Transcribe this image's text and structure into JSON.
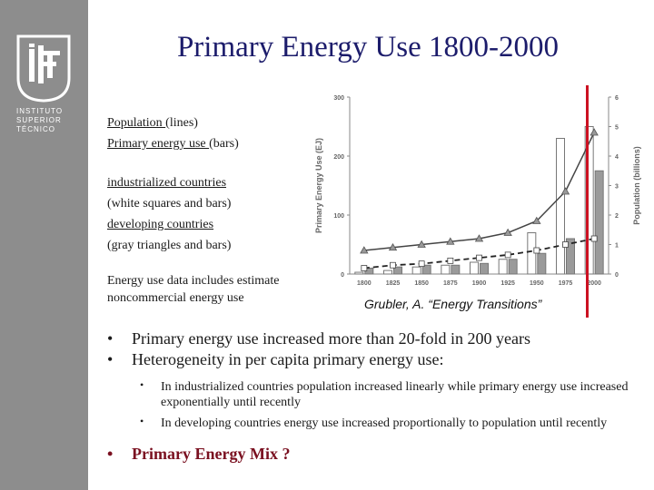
{
  "title": "Primary Energy Use 1800-2000",
  "logo": {
    "lines": [
      "INSTITUTO",
      "SUPERIOR",
      "TÉCNICO"
    ]
  },
  "legend": {
    "population_label": "Population ",
    "population_hint": "(lines)",
    "energy_label": "Primary energy use ",
    "energy_hint": "(bars)",
    "industrialized_label": "industrialized countries",
    "industrialized_hint": "(white squares and bars)",
    "developing_label": "developing  countries",
    "developing_hint": "(gray triangles and bars)",
    "note_line1": "Energy use data includes estimate",
    "note_line2": "noncommercial energy use"
  },
  "caption": "Grubler, A. “Energy Transitions”",
  "bullets": [
    {
      "text": "Primary energy use increased more than 20-fold in 200 years"
    },
    {
      "text": "Heterogeneity in per capita primary energy use:"
    }
  ],
  "sub_bullets": [
    {
      "text": "In industrialized countries population increased linearly while primary energy use increased exponentially until recently"
    },
    {
      "text": "In developing countries energy use increased proportionally to population until recently"
    }
  ],
  "final_bullet": "Primary Energy Mix ?",
  "colors": {
    "title": "#1c1c6b",
    "sidebar": "#8d8d8d",
    "accent_red": "#cc1122",
    "mix": "#7a1020"
  },
  "chart_data": {
    "type": "bar",
    "x": [
      "1800",
      "1825",
      "1850",
      "1875",
      "1900",
      "1925",
      "1950",
      "1975",
      "2000"
    ],
    "ylabel": "Primary Energy Use (EJ)",
    "y2label": "Population (billions)",
    "ylim": [
      0,
      300
    ],
    "y2lim": [
      0,
      6
    ],
    "yticks": [
      "0",
      "100",
      "200",
      "300"
    ],
    "y2ticks": [
      "0",
      "1",
      "2",
      "3",
      "4",
      "5",
      "6"
    ],
    "series": [
      {
        "kind": "bar",
        "fill": "#ffffff",
        "values": [
          3,
          6,
          12,
          15,
          20,
          25,
          70,
          230,
          250
        ]
      },
      {
        "kind": "bar",
        "fill": "#9a9a9a",
        "values": [
          10,
          12,
          15,
          15,
          18,
          25,
          35,
          60,
          175
        ]
      },
      {
        "kind": "line",
        "marker": "triangle",
        "dash": "solid",
        "values": [
          0.8,
          0.9,
          1.0,
          1.1,
          1.2,
          1.4,
          1.8,
          2.8,
          4.8
        ]
      },
      {
        "kind": "line",
        "marker": "square",
        "dash": "dashed",
        "values": [
          0.2,
          0.3,
          0.35,
          0.45,
          0.55,
          0.65,
          0.8,
          1.0,
          1.2
        ]
      }
    ],
    "grid": false
  }
}
